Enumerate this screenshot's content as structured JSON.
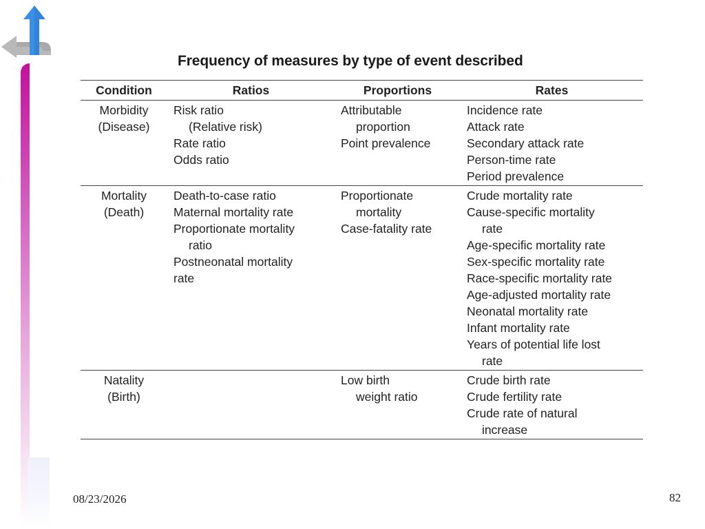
{
  "slide": {
    "title": "Frequency of measures by type of event described",
    "date": "08/23/2026",
    "page_number": "82",
    "nav_icon": "return-arrow-icon",
    "colors": {
      "side_bar_top": "#c4109c",
      "arrow_up": "#3b8fe6",
      "arrow_left": "#b5b5b5"
    }
  },
  "table": {
    "headers": [
      "Condition",
      "Ratios",
      "Proportions",
      "Rates"
    ],
    "rows": [
      {
        "condition": [
          "Morbidity",
          "(Disease)"
        ],
        "ratios": [
          "Risk ratio",
          "(Relative risk)",
          "Rate ratio",
          "Odds ratio"
        ],
        "proportions": [
          "Attributable",
          "proportion",
          "Point prevalence"
        ],
        "rates": [
          "Incidence rate",
          "Attack rate",
          "Secondary attack rate",
          "Person-time rate",
          "Period prevalence"
        ]
      },
      {
        "condition": [
          "Mortality",
          "(Death)"
        ],
        "ratios": [
          "Death-to-case ratio",
          "Maternal mortality rate",
          "Proportionate mortality",
          "ratio",
          "Postneonatal mortality",
          "rate"
        ],
        "proportions": [
          "Proportionate",
          "mortality",
          "Case-fatality rate"
        ],
        "rates": [
          "Crude mortality rate",
          "Cause-specific mortality",
          "rate",
          "Age-specific mortality rate",
          "Sex-specific mortality rate",
          "Race-specific mortality rate",
          "Age-adjusted mortality rate",
          "Neonatal mortality rate",
          "Infant mortality rate",
          "Years of potential life lost",
          "rate"
        ]
      },
      {
        "condition": [
          "Natality",
          "(Birth)"
        ],
        "ratios": [],
        "proportions": [
          "Low birth",
          "weight ratio"
        ],
        "rates": [
          "Crude birth rate",
          "Crude fertility rate",
          "Crude rate of natural",
          "increase"
        ]
      }
    ]
  }
}
